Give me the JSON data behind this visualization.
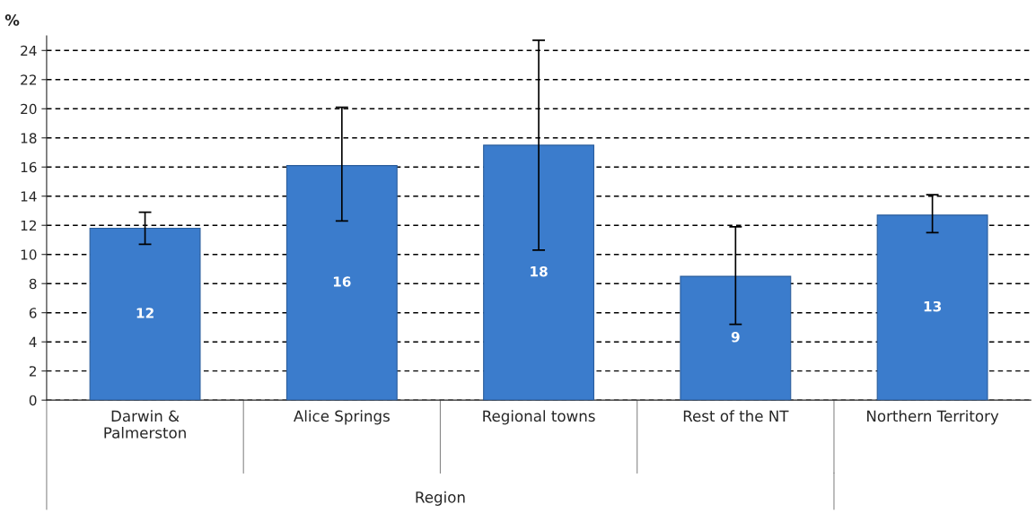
{
  "chart_data": {
    "type": "bar",
    "ylabel": "%",
    "xlabel": "Region",
    "categories": [
      "Darwin &\nPalmerston",
      "Alice Springs",
      "Regional towns",
      "Rest of the NT",
      "Northern Territory"
    ],
    "values": [
      11.8,
      16.1,
      17.5,
      8.5,
      12.7
    ],
    "value_labels": [
      "12",
      "16",
      "18",
      "9",
      "13"
    ],
    "errors": [
      [
        10.7,
        12.9
      ],
      [
        12.3,
        20.1
      ],
      [
        10.3,
        24.7
      ],
      [
        5.2,
        11.9
      ],
      [
        11.5,
        14.1
      ]
    ],
    "color": "#3b7ccc",
    "ylim": [
      0,
      25
    ],
    "yticks": [
      0,
      2,
      4,
      6,
      8,
      10,
      12,
      14,
      16,
      18,
      20,
      22,
      24
    ],
    "grid": "y",
    "legend": false
  }
}
